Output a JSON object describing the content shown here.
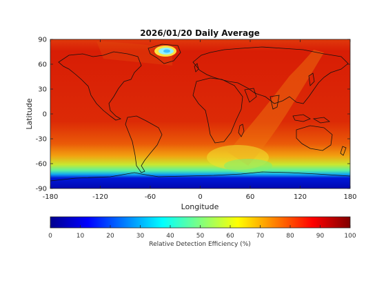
{
  "figure": {
    "title": "2026/01/20 Daily Average",
    "xlabel": "Longitude",
    "ylabel": "Latitude",
    "colorbar_label": "Relative Detection Efficiency (%)"
  },
  "chart_data": {
    "type": "heatmap",
    "title": "2026/01/20 Daily Average",
    "xlabel": "Longitude",
    "ylabel": "Latitude",
    "xlim": [
      -180,
      180
    ],
    "ylim": [
      -90,
      90
    ],
    "xticks": [
      "-180",
      "-120",
      "-60",
      "0",
      "60",
      "120",
      "180"
    ],
    "yticks": [
      "90",
      "60",
      "30",
      "0",
      "-30",
      "-60",
      "-90"
    ],
    "colorbar": {
      "label": "Relative Detection Efficiency (%)",
      "range": [
        0,
        100
      ],
      "ticks": [
        "0",
        "10",
        "20",
        "30",
        "40",
        "50",
        "60",
        "70",
        "80",
        "90",
        "100"
      ],
      "colormap": "jet"
    },
    "field_by_latitude": [
      {
        "lat": 90,
        "value": 85
      },
      {
        "lat": 75,
        "value": 88
      },
      {
        "lat": 60,
        "value": 88
      },
      {
        "lat": 30,
        "value": 86
      },
      {
        "lat": 0,
        "value": 88
      },
      {
        "lat": -30,
        "value": 85
      },
      {
        "lat": -45,
        "value": 78
      },
      {
        "lat": -55,
        "value": 66
      },
      {
        "lat": -62,
        "value": 52
      },
      {
        "lat": -66,
        "value": 30
      },
      {
        "lat": -70,
        "value": 8
      },
      {
        "lat": -90,
        "value": 4
      }
    ]
  }
}
